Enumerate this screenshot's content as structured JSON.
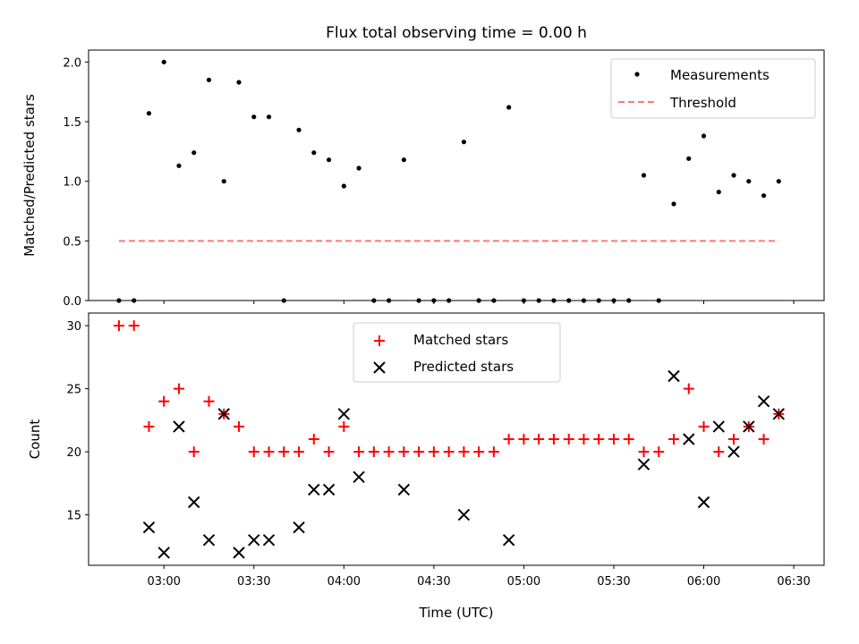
{
  "chart_data": [
    {
      "type": "scatter",
      "title": "Flux total observing time = 0.00 h",
      "xlabel": "",
      "ylabel": "Matched/Predicted stars",
      "ylim": [
        0,
        2.1
      ],
      "yticks": [
        "0.0",
        "0.5",
        "1.0",
        "1.5",
        "2.0"
      ],
      "legend_position": "top-right",
      "series": [
        {
          "name": "Measurements",
          "marker": "dot",
          "color": "#000000",
          "x": [
            "02:45",
            "02:50",
            "02:55",
            "03:00",
            "03:05",
            "03:10",
            "03:15",
            "03:20",
            "03:25",
            "03:30",
            "03:35",
            "03:40",
            "03:45",
            "03:50",
            "03:55",
            "04:00",
            "04:05",
            "04:10",
            "04:15",
            "04:20",
            "04:25",
            "04:30",
            "04:35",
            "04:40",
            "04:45",
            "04:50",
            "04:55",
            "05:00",
            "05:05",
            "05:10",
            "05:15",
            "05:20",
            "05:25",
            "05:30",
            "05:35",
            "05:40",
            "05:45",
            "05:50",
            "05:55",
            "06:00",
            "06:05",
            "06:10",
            "06:15",
            "06:20",
            "06:25"
          ],
          "y": [
            0,
            0,
            1.57,
            2.0,
            1.13,
            1.24,
            1.85,
            1.0,
            1.83,
            1.54,
            1.54,
            0,
            1.43,
            1.24,
            1.18,
            0.96,
            1.11,
            0,
            0,
            1.18,
            0,
            0,
            0,
            1.33,
            0,
            0,
            1.62,
            0,
            0,
            0,
            0,
            0,
            0,
            0,
            0,
            1.05,
            0,
            0.81,
            1.19,
            1.38,
            0.91,
            1.05,
            1.0,
            0.88,
            1.0
          ]
        },
        {
          "name": "Threshold",
          "style": "dashed",
          "color": "#ff7777",
          "x": [
            "02:45",
            "06:25"
          ],
          "y": [
            0.5,
            0.5
          ]
        }
      ]
    },
    {
      "type": "scatter",
      "title": "",
      "xlabel": "Time (UTC)",
      "ylabel": "Count",
      "ylim": [
        11,
        31
      ],
      "yticks": [
        "15",
        "20",
        "25",
        "30"
      ],
      "xticks": [
        "03:00",
        "03:30",
        "04:00",
        "04:30",
        "05:00",
        "05:30",
        "06:00",
        "06:30"
      ],
      "legend_position": "upper-center",
      "series": [
        {
          "name": "Matched stars",
          "marker": "plus",
          "color": "#ff0000",
          "x": [
            "02:45",
            "02:50",
            "02:55",
            "03:00",
            "03:05",
            "03:10",
            "03:15",
            "03:20",
            "03:25",
            "03:30",
            "03:35",
            "03:40",
            "03:45",
            "03:50",
            "03:55",
            "04:00",
            "04:05",
            "04:10",
            "04:15",
            "04:20",
            "04:25",
            "04:30",
            "04:35",
            "04:40",
            "04:45",
            "04:50",
            "04:55",
            "05:00",
            "05:05",
            "05:10",
            "05:15",
            "05:20",
            "05:25",
            "05:30",
            "05:35",
            "05:40",
            "05:45",
            "05:50",
            "05:55",
            "06:00",
            "06:05",
            "06:10",
            "06:15",
            "06:20",
            "06:25"
          ],
          "y": [
            30,
            30,
            22,
            24,
            25,
            20,
            24,
            23,
            22,
            20,
            20,
            20,
            20,
            21,
            20,
            22,
            20,
            20,
            20,
            20,
            20,
            20,
            20,
            20,
            20,
            20,
            21,
            21,
            21,
            21,
            21,
            21,
            21,
            21,
            21,
            20,
            20,
            21,
            25,
            22,
            20,
            21,
            22,
            21,
            23
          ]
        },
        {
          "name": "Predicted stars",
          "marker": "x",
          "color": "#000000",
          "x": [
            "02:55",
            "03:00",
            "03:05",
            "03:10",
            "03:15",
            "03:20",
            "03:25",
            "03:30",
            "03:35",
            "03:45",
            "03:50",
            "03:55",
            "04:00",
            "04:05",
            "04:20",
            "04:40",
            "04:55",
            "05:40",
            "05:50",
            "05:55",
            "06:00",
            "06:05",
            "06:10",
            "06:15",
            "06:20",
            "06:25"
          ],
          "y": [
            14,
            12,
            22,
            16,
            13,
            23,
            12,
            13,
            13,
            14,
            17,
            17,
            23,
            18,
            17,
            15,
            13,
            19,
            26,
            21,
            16,
            22,
            20,
            22,
            24,
            23
          ]
        }
      ]
    }
  ]
}
